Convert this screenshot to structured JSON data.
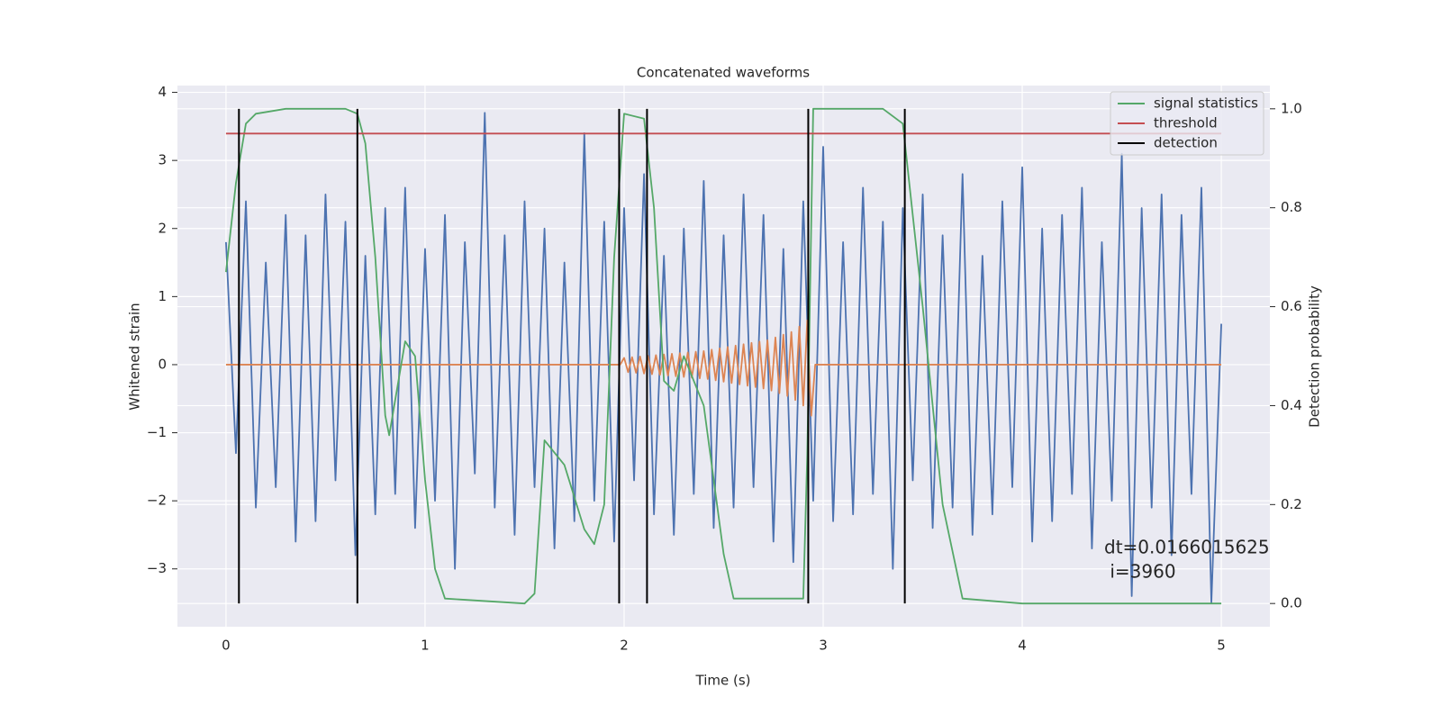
{
  "chart_data": {
    "type": "line",
    "title": "Concatenated waveforms",
    "xlabel": "Time (s)",
    "ylabel": "Whitened strain",
    "y2label": "Detection probability",
    "xlim": [
      -0.244,
      5.244
    ],
    "ylim": [
      -3.85,
      4.1
    ],
    "y2lim": [
      -0.047,
      1.047
    ],
    "xticks": [
      0,
      1,
      2,
      3,
      4,
      5
    ],
    "yticks": [
      {
        "value": -3,
        "label": "−3"
      },
      {
        "value": -2,
        "label": "−2"
      },
      {
        "value": -1,
        "label": "−1"
      },
      0,
      1,
      2,
      3,
      4
    ],
    "y2ticks": [
      {
        "value": 0,
        "label": "0.0"
      },
      {
        "value": 0.2,
        "label": "0.2"
      },
      {
        "value": 0.4,
        "label": "0.4"
      },
      {
        "value": 0.6,
        "label": "0.6"
      },
      {
        "value": 0.8,
        "label": "0.8"
      },
      {
        "value": 1.0,
        "label": "1.0"
      }
    ],
    "grid": true,
    "legend": "upper right",
    "annotation": [
      "dt=0.0166015625",
      " i=3960"
    ],
    "series": [
      {
        "color": "#4c72b0",
        "axis": "y",
        "x": [
          0,
          0.05,
          0.1,
          0.15,
          0.2,
          0.25,
          0.3,
          0.35,
          0.4,
          0.45,
          0.5,
          0.55,
          0.6,
          0.65,
          0.7,
          0.75,
          0.8,
          0.85,
          0.9,
          0.95,
          1,
          1.05,
          1.1,
          1.15,
          1.2,
          1.25,
          1.3,
          1.35,
          1.4,
          1.45,
          1.5,
          1.55,
          1.6,
          1.65,
          1.7,
          1.75,
          1.8,
          1.85,
          1.9,
          1.95,
          2,
          2.05,
          2.1,
          2.15,
          2.2,
          2.25,
          2.3,
          2.35,
          2.4,
          2.45,
          2.5,
          2.55,
          2.6,
          2.65,
          2.7,
          2.75,
          2.8,
          2.85,
          2.9,
          2.95,
          3,
          3.05,
          3.1,
          3.15,
          3.2,
          3.25,
          3.3,
          3.35,
          3.4,
          3.45,
          3.5,
          3.55,
          3.6,
          3.65,
          3.7,
          3.75,
          3.8,
          3.85,
          3.9,
          3.95,
          4,
          4.05,
          4.1,
          4.15,
          4.2,
          4.25,
          4.3,
          4.35,
          4.4,
          4.45,
          4.5,
          4.55,
          4.6,
          4.65,
          4.7,
          4.75,
          4.8,
          4.85,
          4.9,
          4.95,
          5
        ],
        "values": [
          1.8,
          -1.3,
          2.4,
          -2.1,
          1.5,
          -1.8,
          2.2,
          -2.6,
          1.9,
          -2.3,
          2.5,
          -1.7,
          2.1,
          -2.8,
          1.6,
          -2.2,
          2.3,
          -1.9,
          2.6,
          -2.4,
          1.7,
          -2.0,
          2.2,
          -3.0,
          1.8,
          -1.6,
          3.7,
          -2.1,
          1.9,
          -2.5,
          2.4,
          -1.8,
          2.0,
          -2.7,
          1.5,
          -2.3,
          3.4,
          -2.0,
          2.1,
          -2.6,
          2.3,
          -1.7,
          2.8,
          -2.2,
          1.6,
          -2.5,
          2.0,
          -1.9,
          2.7,
          -2.4,
          1.9,
          -2.1,
          2.5,
          -1.8,
          2.2,
          -2.6,
          1.7,
          -2.9,
          2.4,
          -2.0,
          3.2,
          -2.3,
          1.8,
          -2.2,
          2.6,
          -1.9,
          2.1,
          -3.0,
          2.3,
          -1.7,
          2.5,
          -2.4,
          1.9,
          -2.1,
          2.8,
          -2.5,
          1.6,
          -2.2,
          2.4,
          -1.8,
          2.9,
          -2.6,
          2.0,
          -2.3,
          2.2,
          -1.9,
          2.6,
          -2.7,
          1.8,
          -2.0,
          3.1,
          -3.4,
          2.3,
          -2.1,
          2.5,
          -2.8,
          2.2,
          -1.9,
          2.6,
          -3.5,
          0.6
        ]
      },
      {
        "color": "#dd8452",
        "axis": "y",
        "x": [
          0,
          1.98,
          2.0,
          2.02,
          2.04,
          2.06,
          2.08,
          2.1,
          2.12,
          2.14,
          2.16,
          2.18,
          2.2,
          2.22,
          2.24,
          2.26,
          2.28,
          2.3,
          2.32,
          2.34,
          2.36,
          2.38,
          2.4,
          2.42,
          2.44,
          2.46,
          2.48,
          2.5,
          2.52,
          2.54,
          2.56,
          2.58,
          2.6,
          2.62,
          2.64,
          2.66,
          2.68,
          2.7,
          2.72,
          2.74,
          2.76,
          2.78,
          2.8,
          2.82,
          2.84,
          2.86,
          2.88,
          2.9,
          2.92,
          2.94,
          2.96,
          5
        ],
        "values": [
          0,
          0,
          0.1,
          -0.11,
          0.11,
          -0.12,
          0.12,
          -0.13,
          0.13,
          -0.14,
          0.14,
          -0.15,
          0.15,
          -0.16,
          0.16,
          -0.17,
          0.17,
          -0.18,
          0.18,
          -0.19,
          0.19,
          -0.2,
          0.2,
          -0.21,
          0.22,
          -0.23,
          0.24,
          -0.25,
          0.26,
          -0.27,
          0.28,
          -0.29,
          0.3,
          -0.31,
          0.32,
          -0.33,
          0.34,
          -0.35,
          0.36,
          -0.38,
          0.4,
          -0.42,
          0.44,
          -0.46,
          0.48,
          -0.52,
          0.56,
          -0.6,
          0.65,
          -0.75,
          0,
          0
        ]
      },
      {
        "name": "signal statistics",
        "color": "#55a868",
        "axis": "y2",
        "x": [
          0,
          0.05,
          0.1,
          0.15,
          0.3,
          0.6,
          0.66,
          0.7,
          0.75,
          0.8,
          0.82,
          0.9,
          0.95,
          1.0,
          1.05,
          1.1,
          1.5,
          1.55,
          1.6,
          1.7,
          1.8,
          1.85,
          1.9,
          1.95,
          2.0,
          2.1,
          2.15,
          2.2,
          2.25,
          2.3,
          2.4,
          2.5,
          2.55,
          2.9,
          2.92,
          2.95,
          3.3,
          3.4,
          3.5,
          3.6,
          3.7,
          4,
          5
        ],
        "values": [
          0.67,
          0.85,
          0.97,
          0.99,
          1.0,
          1.0,
          0.99,
          0.93,
          0.7,
          0.38,
          0.34,
          0.53,
          0.5,
          0.25,
          0.07,
          0.01,
          0.0,
          0.02,
          0.33,
          0.28,
          0.15,
          0.12,
          0.2,
          0.7,
          0.99,
          0.98,
          0.8,
          0.45,
          0.43,
          0.5,
          0.4,
          0.1,
          0.01,
          0.01,
          0.3,
          1.0,
          1.0,
          0.97,
          0.6,
          0.2,
          0.01,
          0.0,
          0.0
        ]
      },
      {
        "name": "threshold",
        "color": "#c44e52",
        "axis": "y2",
        "x": [
          0,
          5
        ],
        "values": [
          0.95,
          0.95
        ]
      }
    ],
    "detections": {
      "name": "detection",
      "color": "#000000",
      "span": [
        0,
        1
      ],
      "x": [
        0.065,
        0.66,
        1.975,
        2.115,
        2.925,
        3.41
      ]
    }
  }
}
